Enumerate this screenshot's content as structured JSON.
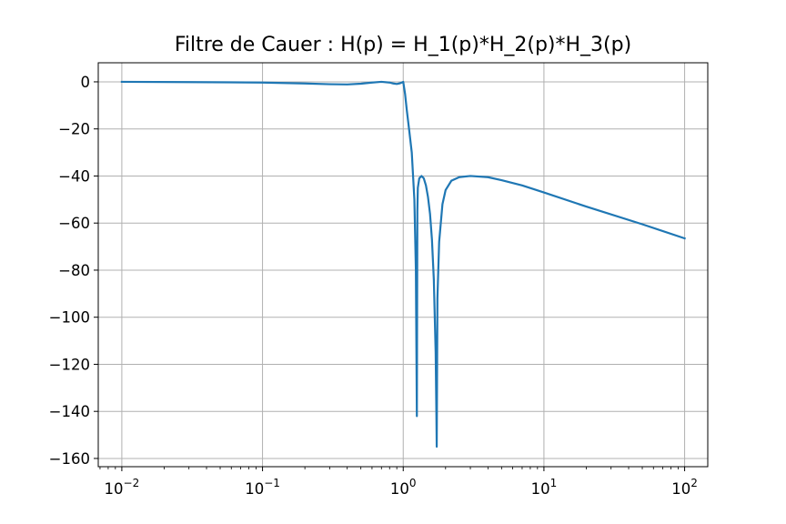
{
  "chart_data": {
    "type": "line",
    "title": "Filtre de Cauer : H(p) = H_1(p)*H_2(p)*H_3(p)",
    "xlabel": "",
    "ylabel": "",
    "xscale": "log",
    "xlim": [
      0.0068,
      146
    ],
    "ylim": [
      -163.5,
      8.1
    ],
    "grid": true,
    "x_ticks": [
      {
        "value": 0.01,
        "base": "10",
        "exp": "−2"
      },
      {
        "value": 0.1,
        "base": "10",
        "exp": "−1"
      },
      {
        "value": 1,
        "base": "10",
        "exp": "0"
      },
      {
        "value": 10,
        "base": "10",
        "exp": "1"
      },
      {
        "value": 100,
        "base": "10",
        "exp": "2"
      }
    ],
    "y_ticks": [
      {
        "value": 0,
        "label": "0"
      },
      {
        "value": -20,
        "label": "−20"
      },
      {
        "value": -40,
        "label": "−40"
      },
      {
        "value": -60,
        "label": "−60"
      },
      {
        "value": -80,
        "label": "−80"
      },
      {
        "value": -100,
        "label": "−100"
      },
      {
        "value": -120,
        "label": "−120"
      },
      {
        "value": -140,
        "label": "−140"
      },
      {
        "value": -160,
        "label": "−160"
      }
    ],
    "series": [
      {
        "color": "#1f77b4",
        "x": [
          0.01,
          0.03,
          0.1,
          0.2,
          0.3,
          0.4,
          0.5,
          0.6,
          0.7,
          0.8,
          0.85,
          0.9,
          0.95,
          1.0,
          1.03,
          1.06,
          1.1,
          1.15,
          1.2,
          1.23,
          1.25,
          1.26,
          1.27,
          1.3,
          1.35,
          1.4,
          1.45,
          1.5,
          1.55,
          1.6,
          1.65,
          1.7,
          1.72,
          1.73,
          1.75,
          1.8,
          1.9,
          2.0,
          2.2,
          2.5,
          3.0,
          4.0,
          5.0,
          7.0,
          10.0,
          20.0,
          50.0,
          100.0
        ],
        "y": [
          0,
          -0.1,
          -0.3,
          -0.7,
          -1.0,
          -1.1,
          -0.8,
          -0.3,
          0,
          -0.3,
          -0.7,
          -0.9,
          -0.6,
          0,
          -5,
          -12,
          -20,
          -30,
          -50,
          -80,
          -142,
          -55,
          -45,
          -41,
          -40,
          -41,
          -44,
          -49,
          -56,
          -67,
          -84,
          -115,
          -140,
          -155,
          -92,
          -68,
          -52,
          -46,
          -42,
          -40.5,
          -40,
          -40.5,
          -41.8,
          -44,
          -47,
          -53,
          -60.5,
          -66.5
        ]
      }
    ]
  }
}
